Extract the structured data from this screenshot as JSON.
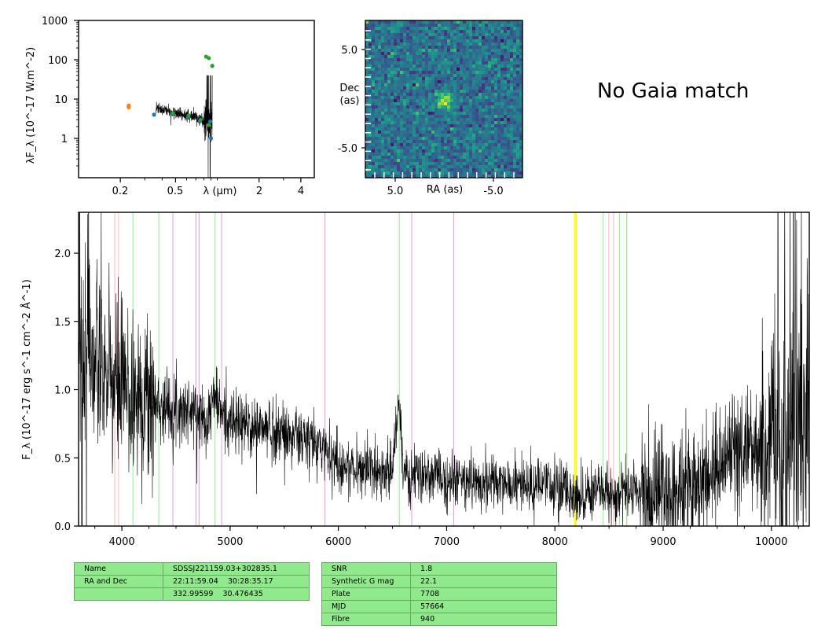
{
  "sed_panel": {
    "ylabel": "λF_λ (10^-17 W.m^-2)",
    "yticks": [
      "1000",
      "100",
      "10",
      "1"
    ],
    "xticks": [
      "0.2",
      "0.5",
      "2",
      "4"
    ],
    "xlabel": "λ (μm)",
    "xlim": [
      0.1,
      5.0
    ],
    "ylim": [
      0.1,
      1000
    ],
    "xscale": "log",
    "yscale": "log"
  },
  "image_panel": {
    "ylabel_top": "Dec",
    "ylabel_bottom": "(as)",
    "xlabel": "RA (as)",
    "xticks": [
      "5.0",
      "-5.0"
    ],
    "yticks": [
      "5.0",
      "-5.0"
    ],
    "colormap": "viridis"
  },
  "gaia_text": "No Gaia match",
  "chart_data": {
    "type": "line",
    "xlabel": "",
    "ylabel": "F_λ (10^-17 erg s^-1 cm^-2 Å^-1)",
    "xlim": [
      3600,
      10350
    ],
    "ylim": [
      0.0,
      2.3
    ],
    "xticks": [
      "4000",
      "5000",
      "6000",
      "7000",
      "8000",
      "9000",
      "10000"
    ],
    "yticks": [
      "0.0",
      "0.5",
      "1.0",
      "1.5",
      "2.0"
    ],
    "series": [
      {
        "color": "#000000",
        "x": [
          3600,
          3700,
          3800,
          3900,
          4000,
          4100,
          4200,
          4300,
          4400,
          4500,
          4600,
          4700,
          4800,
          4860,
          4900,
          5000,
          5100,
          5200,
          5300,
          5400,
          5500,
          5600,
          5700,
          5800,
          5900,
          6000,
          6100,
          6200,
          6300,
          6400,
          6500,
          6563,
          6600,
          6700,
          6800,
          6900,
          7000,
          7100,
          7200,
          7300,
          7400,
          7500,
          7600,
          7700,
          7800,
          7900,
          8000,
          8100,
          8200,
          8300,
          8400,
          8500,
          8600,
          8700,
          8800,
          8900,
          9000,
          9100,
          9200,
          9300,
          9400,
          9500,
          9600,
          9700,
          9800,
          9900,
          10000,
          10100,
          10200,
          10300
        ],
        "y": [
          1.35,
          1.25,
          1.15,
          1.05,
          1.0,
          0.95,
          0.95,
          0.9,
          0.88,
          0.86,
          0.85,
          0.82,
          0.8,
          0.98,
          0.85,
          0.76,
          0.74,
          0.72,
          0.72,
          0.7,
          0.68,
          0.66,
          0.62,
          0.6,
          0.55,
          0.45,
          0.42,
          0.42,
          0.43,
          0.41,
          0.4,
          0.97,
          0.36,
          0.36,
          0.37,
          0.36,
          0.35,
          0.33,
          0.33,
          0.32,
          0.32,
          0.3,
          0.3,
          0.31,
          0.28,
          0.29,
          0.3,
          0.25,
          0.22,
          0.25,
          0.26,
          0.22,
          0.24,
          0.26,
          0.25,
          0.25,
          0.27,
          0.27,
          0.28,
          0.3,
          0.34,
          0.45,
          0.5,
          0.52,
          0.55,
          0.6,
          0.62,
          0.7,
          0.8,
          0.9
        ]
      }
    ],
    "lines": [
      {
        "x": 3934,
        "color": "#ffb6c1"
      },
      {
        "x": 3969,
        "color": "#ffb6c1"
      },
      {
        "x": 4102,
        "color": "#90ee90"
      },
      {
        "x": 4341,
        "color": "#90ee90"
      },
      {
        "x": 4471,
        "color": "#dda0dd"
      },
      {
        "x": 4686,
        "color": "#dda0dd"
      },
      {
        "x": 4713,
        "color": "#dda0dd"
      },
      {
        "x": 4861,
        "color": "#90ee90"
      },
      {
        "x": 4922,
        "color": "#dda0dd"
      },
      {
        "x": 5876,
        "color": "#dda0dd"
      },
      {
        "x": 6563,
        "color": "#90ee90"
      },
      {
        "x": 6678,
        "color": "#dda0dd"
      },
      {
        "x": 7065,
        "color": "#dda0dd"
      },
      {
        "x": 8183,
        "color": "#ffff00"
      },
      {
        "x": 8195,
        "color": "#ffff00"
      },
      {
        "x": 8446,
        "color": "#90ee90"
      },
      {
        "x": 8498,
        "color": "#ffb6c1"
      },
      {
        "x": 8542,
        "color": "#ffb6c1"
      },
      {
        "x": 8598,
        "color": "#90ee90"
      },
      {
        "x": 8662,
        "color": "#ffb6c1"
      },
      {
        "x": 8665,
        "color": "#90ee90"
      }
    ]
  },
  "sed_points": [
    {
      "x": 0.23,
      "y": 6.8,
      "color": "#ff7f0e"
    },
    {
      "x": 0.23,
      "y": 6.2,
      "color": "#ff7f0e"
    },
    {
      "x": 0.35,
      "y": 4.0,
      "color": "#1f77b4"
    },
    {
      "x": 0.47,
      "y": 4.2,
      "color": "#1f77b4"
    },
    {
      "x": 0.62,
      "y": 3.5,
      "color": "#1f77b4"
    },
    {
      "x": 0.75,
      "y": 2.8,
      "color": "#1f77b4"
    },
    {
      "x": 0.89,
      "y": 2.7,
      "color": "#1f77b4"
    },
    {
      "x": 0.48,
      "y": 4.4,
      "color": "#2ca02c"
    },
    {
      "x": 0.62,
      "y": 3.8,
      "color": "#2ca02c"
    },
    {
      "x": 0.76,
      "y": 3.0,
      "color": "#2ca02c"
    },
    {
      "x": 0.87,
      "y": 2.2,
      "color": "#2ca02c"
    },
    {
      "x": 0.83,
      "y": 120,
      "color": "#2ca02c"
    },
    {
      "x": 0.87,
      "y": 110,
      "color": "#2ca02c"
    },
    {
      "x": 0.92,
      "y": 70,
      "color": "#2ca02c"
    },
    {
      "x": 0.9,
      "y": 1.0,
      "color": "#1f77b4"
    }
  ],
  "left_table": [
    [
      "Name",
      "SDSSJ221159.03+302835.1"
    ],
    [
      "RA and Dec",
      "22:11:59.04    30:28:35.17"
    ],
    [
      "",
      "332.99599    30.476435"
    ]
  ],
  "right_table": [
    [
      "SNR",
      "1.8"
    ],
    [
      "Synthetic G mag",
      "22.1"
    ],
    [
      "Plate",
      "7708"
    ],
    [
      "MJD",
      "57664"
    ],
    [
      "Fibre",
      "940"
    ]
  ]
}
